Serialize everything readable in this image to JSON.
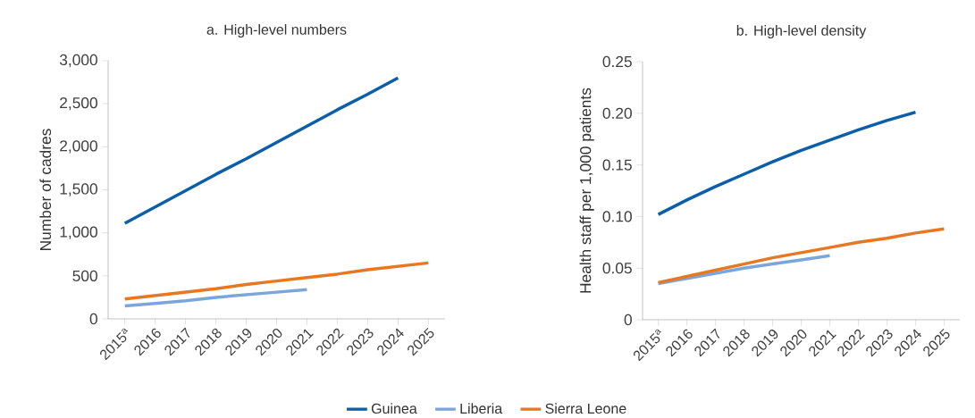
{
  "chart_data": [
    {
      "type": "line",
      "title": "a. High-level numbers",
      "ylabel": "Number of cadres",
      "categories": [
        "2015$^{a}$",
        "2016",
        "2017",
        "2018",
        "2019",
        "2020",
        "2021",
        "2022",
        "2023",
        "2024",
        "2025"
      ],
      "ylim": [
        0,
        3000
      ],
      "yticks": [
        {
          "value": 0,
          "label": "0"
        },
        {
          "value": 500,
          "label": "500"
        },
        {
          "value": 1000,
          "label": "1,000"
        },
        {
          "value": 1500,
          "label": "1,500"
        },
        {
          "value": 2000,
          "label": "2,000"
        },
        {
          "value": 2500,
          "label": "2,500"
        },
        {
          "value": 3000,
          "label": "3,000"
        }
      ],
      "legend": "bottom",
      "line_style": "solid",
      "series": [
        {
          "name": "Guinea",
          "color": "#0b5ea8",
          "values": [
            1110,
            1300,
            1490,
            1680,
            1860,
            2050,
            2240,
            2430,
            2610,
            2800,
            null
          ]
        },
        {
          "name": "Liberia",
          "color": "#7aa6dc",
          "values": [
            150,
            180,
            210,
            250,
            280,
            310,
            340,
            null,
            null,
            null,
            null
          ]
        },
        {
          "name": "Sierra Leone",
          "color": "#e87722",
          "values": [
            230,
            270,
            310,
            350,
            400,
            440,
            480,
            520,
            570,
            610,
            650
          ]
        }
      ]
    },
    {
      "type": "line",
      "title": "b. High-level density",
      "ylabel": "Health staff per 1,000 patients",
      "categories": [
        "2015$^{a}$",
        "2016",
        "2017",
        "2018",
        "2019",
        "2020",
        "2021",
        "2022",
        "2023",
        "2024",
        "2025"
      ],
      "ylim": [
        0,
        0.25
      ],
      "yticks": [
        {
          "value": 0,
          "label": "0"
        },
        {
          "value": 0.05,
          "label": "0.05"
        },
        {
          "value": 0.1,
          "label": "0.10"
        },
        {
          "value": 0.15,
          "label": "0.15"
        },
        {
          "value": 0.2,
          "label": "0.20"
        },
        {
          "value": 0.25,
          "label": "0.25"
        }
      ],
      "line_style": "solid",
      "series": [
        {
          "color": "#0b5ea8",
          "values": [
            0.102,
            0.116,
            0.129,
            0.141,
            0.153,
            0.164,
            0.174,
            0.184,
            0.193,
            0.201,
            null
          ]
        },
        {
          "color": "#7aa6dc",
          "values": [
            0.035,
            0.04,
            0.045,
            0.05,
            0.054,
            0.058,
            0.062,
            null,
            null,
            null,
            null
          ]
        },
        {
          "color": "#e87722",
          "values": [
            0.036,
            0.042,
            0.048,
            0.054,
            0.06,
            0.065,
            0.07,
            0.075,
            0.079,
            0.084,
            0.088
          ]
        }
      ]
    }
  ]
}
